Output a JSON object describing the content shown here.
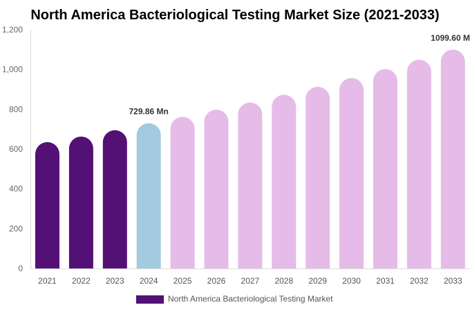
{
  "chart_data": {
    "type": "bar",
    "title": "North America Bacteriological Testing Market Size (2021-2033)",
    "xlabel": "",
    "ylabel": "",
    "ylim": [
      0,
      1200
    ],
    "yticks": [
      "0",
      "200",
      "400",
      "600",
      "800",
      "1,000",
      "1,200"
    ],
    "grid": false,
    "categories": [
      "2021",
      "2022",
      "2023",
      "2024",
      "2025",
      "2026",
      "2027",
      "2028",
      "2029",
      "2030",
      "2031",
      "2032",
      "2033"
    ],
    "series": [
      {
        "name": "North America Bacteriological Testing Market",
        "values": [
          635,
          663,
          695,
          729.86,
          762,
          798,
          834,
          873,
          913,
          957,
          1002,
          1049,
          1099.6
        ]
      }
    ],
    "data_labels": [
      {
        "category": "2024",
        "text": "729.86 Mn"
      },
      {
        "category": "2033",
        "text": "1099.60 Mn"
      }
    ],
    "colors": {
      "historical": "#531175",
      "base_year": "#a3cadf",
      "forecast": "#e6bbe8"
    },
    "legend_position": "bottom"
  }
}
